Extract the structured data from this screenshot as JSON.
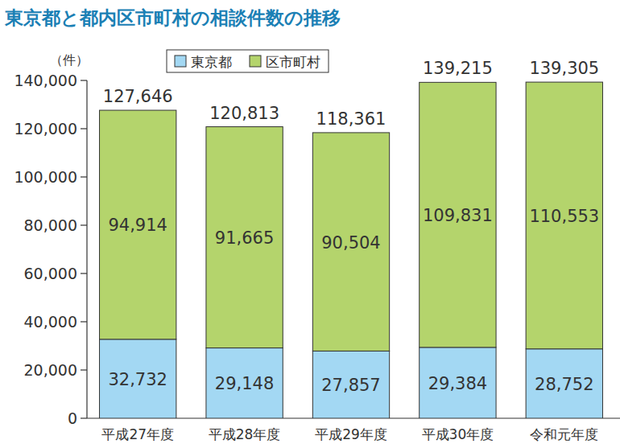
{
  "chart_data": {
    "type": "bar",
    "title": "東京都と都内区市町村の相談件数の推移",
    "y_label": "（件）",
    "categories": [
      "平成27年度",
      "平成28年度",
      "平成29年度",
      "平成30年度",
      "令和元年度"
    ],
    "series": [
      {
        "name": "東京都",
        "color": "#a3d8f3",
        "values": [
          32732,
          29148,
          27857,
          29384,
          28752
        ],
        "value_labels": [
          "32,732",
          "29,148",
          "27,857",
          "29,384",
          "28,752"
        ]
      },
      {
        "name": "区市町村",
        "color": "#b4d46c",
        "values": [
          94914,
          91665,
          90504,
          109831,
          110553
        ],
        "value_labels": [
          "94,914",
          "91,665",
          "90,504",
          "109,831",
          "110,553"
        ]
      }
    ],
    "totals": [
      127646,
      120813,
      118361,
      139215,
      139305
    ],
    "total_labels": [
      "127,646",
      "120,813",
      "118,361",
      "139,215",
      "139,305"
    ],
    "stacked": true,
    "data_labels": true,
    "legend": "top",
    "grid": false,
    "ylim": [
      0,
      140000
    ],
    "yticks": [
      0,
      {
        "value": 20000,
        "label": "20,000"
      },
      {
        "value": 40000,
        "label": "40,000"
      },
      {
        "value": 60000,
        "label": "60,000"
      },
      {
        "value": 80000,
        "label": "80,000"
      },
      {
        "value": 100000,
        "label": "100,000"
      },
      {
        "value": 120000,
        "label": "120,000"
      },
      {
        "value": 140000,
        "label": "140,000"
      }
    ]
  }
}
